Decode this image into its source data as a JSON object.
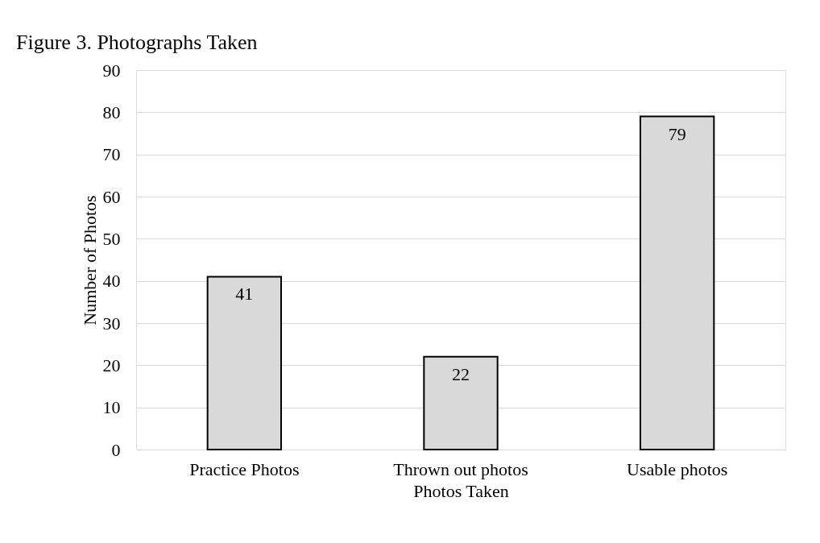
{
  "chart_data": {
    "type": "bar",
    "title": "Figure 3. Photographs Taken",
    "xlabel": "Photos Taken",
    "ylabel": "Number of Photos",
    "categories": [
      "Practice Photos",
      "Thrown out photos",
      "Usable photos"
    ],
    "values": [
      41,
      22,
      79
    ],
    "color": "#d9d9d9",
    "ylim": [
      0,
      90
    ],
    "yticks": [
      0,
      10,
      20,
      30,
      40,
      50,
      60,
      70,
      80,
      90
    ],
    "grid": "y",
    "data_labels": true
  }
}
